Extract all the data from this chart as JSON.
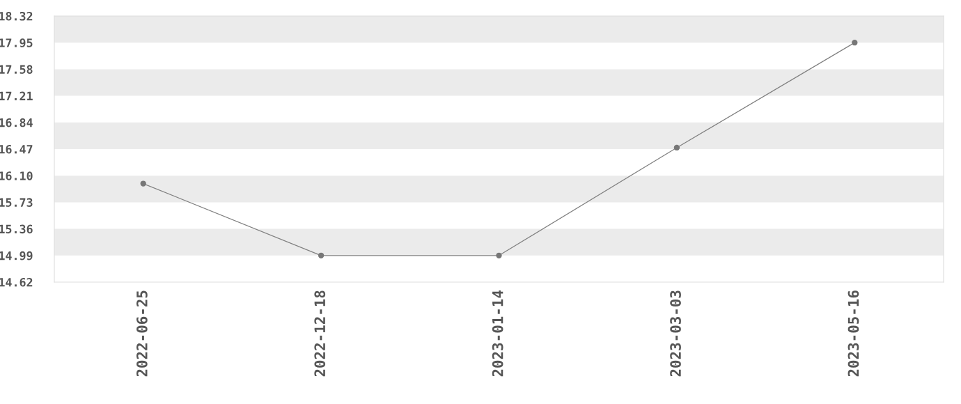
{
  "chart_data": {
    "type": "line",
    "categories": [
      "2022-06-25",
      "2022-12-18",
      "2023-01-14",
      "2023-03-03",
      "2023-05-16"
    ],
    "series": [
      {
        "color": "#808080",
        "values": [
          15.99,
          14.99,
          14.99,
          16.49,
          17.95
        ]
      }
    ],
    "ylim": [
      14.62,
      18.32
    ],
    "yticks": [
      {
        "value": 14.62,
        "label": "14.62"
      },
      {
        "value": 14.99,
        "label": "14.99"
      },
      {
        "value": 15.36,
        "label": "15.36"
      },
      {
        "value": 15.73,
        "label": "15.73"
      },
      {
        "value": 16.1,
        "label": "16.10"
      },
      {
        "value": 16.47,
        "label": "16.47"
      },
      {
        "value": 16.84,
        "label": "16.84"
      },
      {
        "value": 17.21,
        "label": "17.21"
      },
      {
        "value": 17.58,
        "label": "17.58"
      },
      {
        "value": 17.95,
        "label": "17.95"
      },
      {
        "value": 18.32,
        "label": "18.32"
      }
    ],
    "bands": [
      {
        "axis": "y",
        "from": 17.95,
        "to": 18.32,
        "color": "#ebebeb"
      },
      {
        "axis": "y",
        "from": 17.21,
        "to": 17.58,
        "color": "#ebebeb"
      },
      {
        "axis": "y",
        "from": 16.47,
        "to": 16.84,
        "color": "#ebebeb"
      },
      {
        "axis": "y",
        "from": 15.73,
        "to": 16.1,
        "color": "#ebebeb"
      },
      {
        "axis": "y",
        "from": 14.99,
        "to": 15.36,
        "color": "#ebebeb"
      }
    ],
    "grid": false,
    "legend": false,
    "marker": "circle",
    "line_style": "solid"
  }
}
